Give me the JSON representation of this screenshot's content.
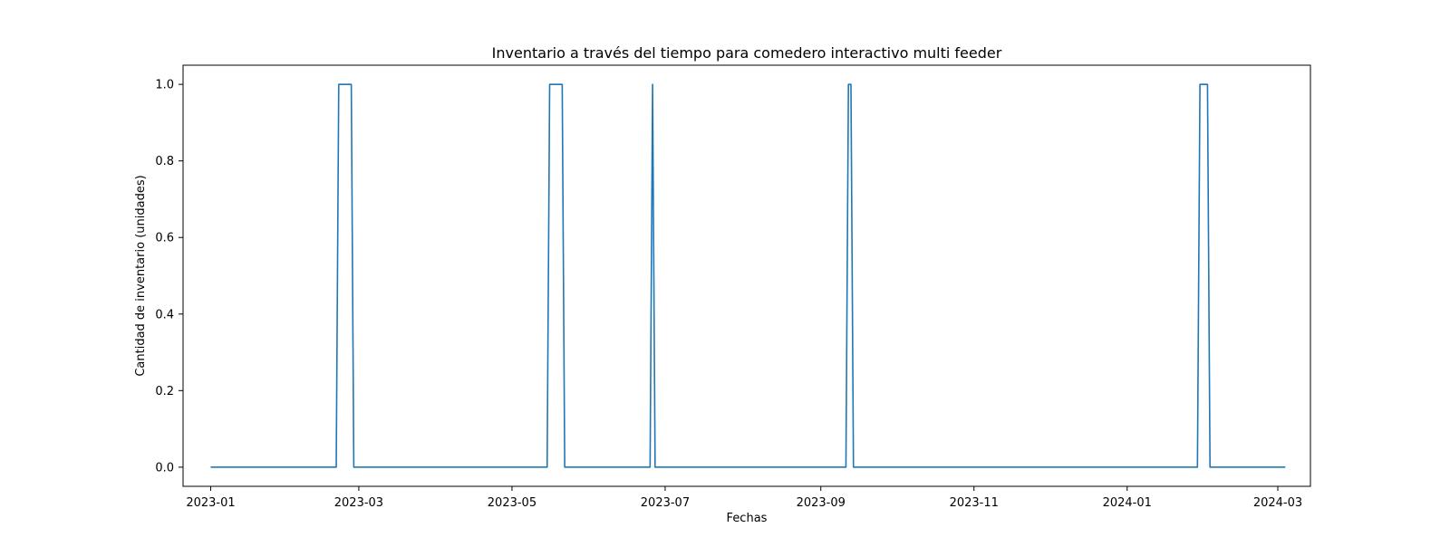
{
  "chart_data": {
    "type": "line",
    "title": "Inventario a través del tiempo para comedero interactivo multi feeder",
    "xlabel": "Fechas",
    "ylabel": "Cantidad de inventario (unidades)",
    "x_axis_type": "date",
    "xlim": [
      "2022-12-21",
      "2024-03-14"
    ],
    "ylim": [
      -0.05,
      1.05
    ],
    "x_ticks": [
      {
        "date": "2023-01-01",
        "label": "2023-01"
      },
      {
        "date": "2023-03-01",
        "label": "2023-03"
      },
      {
        "date": "2023-05-01",
        "label": "2023-05"
      },
      {
        "date": "2023-07-01",
        "label": "2023-07"
      },
      {
        "date": "2023-09-01",
        "label": "2023-09"
      },
      {
        "date": "2023-11-01",
        "label": "2023-11"
      },
      {
        "date": "2024-01-01",
        "label": "2024-01"
      },
      {
        "date": "2024-03-01",
        "label": "2024-03"
      }
    ],
    "y_ticks": [
      {
        "value": 0.0,
        "label": "0.0"
      },
      {
        "value": 0.2,
        "label": "0.2"
      },
      {
        "value": 0.4,
        "label": "0.4"
      },
      {
        "value": 0.6,
        "label": "0.6"
      },
      {
        "value": 0.8,
        "label": "0.8"
      },
      {
        "value": 1.0,
        "label": "1.0"
      }
    ],
    "grid": false,
    "legend": "none",
    "series": [
      {
        "color": "#1f77b4",
        "points": [
          {
            "x": "2023-01-01",
            "y": 0
          },
          {
            "x": "2023-02-20",
            "y": 0
          },
          {
            "x": "2023-02-21",
            "y": 1
          },
          {
            "x": "2023-02-26",
            "y": 1
          },
          {
            "x": "2023-02-27",
            "y": 0
          },
          {
            "x": "2023-05-15",
            "y": 0
          },
          {
            "x": "2023-05-16",
            "y": 1
          },
          {
            "x": "2023-05-21",
            "y": 1
          },
          {
            "x": "2023-05-22",
            "y": 0
          },
          {
            "x": "2023-06-25",
            "y": 0
          },
          {
            "x": "2023-06-26",
            "y": 1
          },
          {
            "x": "2023-06-27",
            "y": 0
          },
          {
            "x": "2023-09-11",
            "y": 0
          },
          {
            "x": "2023-09-12",
            "y": 1
          },
          {
            "x": "2023-09-13",
            "y": 1
          },
          {
            "x": "2023-09-14",
            "y": 0
          },
          {
            "x": "2024-01-29",
            "y": 0
          },
          {
            "x": "2024-01-30",
            "y": 1
          },
          {
            "x": "2024-02-02",
            "y": 1
          },
          {
            "x": "2024-02-03",
            "y": 0
          },
          {
            "x": "2024-03-04",
            "y": 0
          }
        ]
      }
    ]
  }
}
